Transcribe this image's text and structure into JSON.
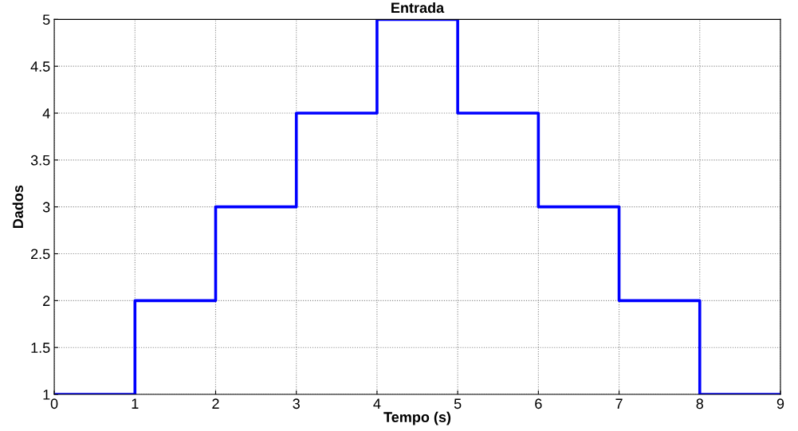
{
  "chart_data": {
    "type": "step",
    "title": "Entrada",
    "xlabel": "Tempo (s)",
    "ylabel": "Dados",
    "x": [
      0,
      1,
      2,
      3,
      4,
      5,
      6,
      7,
      8,
      9
    ],
    "series": [
      {
        "color": "#0000ff",
        "values": [
          1,
          2,
          3,
          4,
          5,
          4,
          3,
          2,
          1,
          1
        ]
      }
    ],
    "xlim": [
      0,
      9
    ],
    "ylim": [
      1,
      5
    ],
    "xticks": [
      0,
      1,
      2,
      3,
      4,
      5,
      6,
      7,
      8,
      9
    ],
    "yticks": [
      1,
      1.5,
      2,
      2.5,
      3,
      3.5,
      4,
      4.5,
      5
    ],
    "grid": true,
    "line_style": "solid",
    "marker": "none",
    "legend": false
  }
}
